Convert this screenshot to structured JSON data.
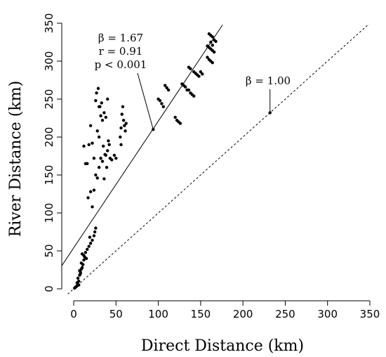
{
  "chart_data": {
    "type": "scatter",
    "xlabel": "Direct Distance (km)",
    "ylabel": "River Distance (km)",
    "xlim": [
      0,
      350
    ],
    "ylim": [
      0,
      350
    ],
    "x_ticks": [
      0,
      50,
      100,
      150,
      200,
      250,
      300,
      350
    ],
    "y_ticks": [
      0,
      50,
      100,
      150,
      200,
      250,
      300,
      350
    ],
    "grid": false,
    "legend": "none",
    "fit_line": {
      "style": "solid",
      "slope": 1.67,
      "intercept": 54,
      "annotation": {
        "beta": "β = 1.67",
        "r": "r = 0.91",
        "p": "p < 0.001",
        "pointer_to": [
          94,
          210
        ]
      }
    },
    "reference_line": {
      "style": "dashed",
      "slope": 1.0,
      "intercept": 0,
      "annotation": {
        "beta": "β = 1.00",
        "pointer_to": [
          232,
          232
        ]
      }
    },
    "points": [
      [
        1,
        1
      ],
      [
        2,
        2
      ],
      [
        3,
        3
      ],
      [
        4,
        4
      ],
      [
        5,
        6
      ],
      [
        6,
        5
      ],
      [
        4,
        8
      ],
      [
        6,
        10
      ],
      [
        5,
        14
      ],
      [
        7,
        18
      ],
      [
        8,
        22
      ],
      [
        9,
        26
      ],
      [
        10,
        28
      ],
      [
        11,
        32
      ],
      [
        12,
        38
      ],
      [
        13,
        42
      ],
      [
        10,
        46
      ],
      [
        14,
        48
      ],
      [
        16,
        52
      ],
      [
        18,
        56
      ],
      [
        20,
        60
      ],
      [
        22,
        64
      ],
      [
        24,
        70
      ],
      [
        19,
        68
      ],
      [
        25,
        75
      ],
      [
        26,
        80
      ],
      [
        8,
        20
      ],
      [
        7,
        24
      ],
      [
        9,
        34
      ],
      [
        12,
        44
      ],
      [
        15,
        40
      ],
      [
        17,
        120
      ],
      [
        20,
        128
      ],
      [
        22,
        108
      ],
      [
        24,
        130
      ],
      [
        26,
        150
      ],
      [
        28,
        146
      ],
      [
        30,
        160
      ],
      [
        32,
        172
      ],
      [
        34,
        168
      ],
      [
        36,
        145
      ],
      [
        38,
        176
      ],
      [
        40,
        182
      ],
      [
        42,
        190
      ],
      [
        12,
        188
      ],
      [
        14,
        165
      ],
      [
        16,
        165
      ],
      [
        18,
        190
      ],
      [
        20,
        215
      ],
      [
        22,
        192
      ],
      [
        24,
        172
      ],
      [
        26,
        248
      ],
      [
        28,
        208
      ],
      [
        30,
        200
      ],
      [
        31,
        240
      ],
      [
        32,
        228
      ],
      [
        34,
        222
      ],
      [
        36,
        232
      ],
      [
        38,
        226
      ],
      [
        40,
        250
      ],
      [
        41,
        195
      ],
      [
        27,
        258
      ],
      [
        29,
        264
      ],
      [
        30,
        240
      ],
      [
        33,
        245
      ],
      [
        35,
        188
      ],
      [
        37,
        177
      ],
      [
        39,
        160
      ],
      [
        43,
        172
      ],
      [
        45,
        170
      ],
      [
        48,
        176
      ],
      [
        50,
        172
      ],
      [
        55,
        200
      ],
      [
        56,
        212
      ],
      [
        57,
        230
      ],
      [
        58,
        240
      ],
      [
        59,
        222
      ],
      [
        60,
        215
      ],
      [
        61,
        208
      ],
      [
        62,
        218
      ],
      [
        56,
        190
      ],
      [
        100,
        250
      ],
      [
        102,
        248
      ],
      [
        104,
        244
      ],
      [
        106,
        240
      ],
      [
        108,
        268
      ],
      [
        110,
        265
      ],
      [
        112,
        262
      ],
      [
        120,
        226
      ],
      [
        122,
        222
      ],
      [
        124,
        220
      ],
      [
        126,
        218
      ],
      [
        128,
        270
      ],
      [
        130,
        268
      ],
      [
        132,
        266
      ],
      [
        134,
        262
      ],
      [
        136,
        262
      ],
      [
        138,
        258
      ],
      [
        140,
        256
      ],
      [
        142,
        254
      ],
      [
        136,
        292
      ],
      [
        138,
        290
      ],
      [
        142,
        286
      ],
      [
        144,
        284
      ],
      [
        146,
        282
      ],
      [
        148,
        280
      ],
      [
        150,
        286
      ],
      [
        152,
        283
      ],
      [
        158,
        305
      ],
      [
        160,
        302
      ],
      [
        162,
        300
      ],
      [
        164,
        298
      ],
      [
        158,
        320
      ],
      [
        160,
        318
      ],
      [
        162,
        316
      ],
      [
        164,
        314
      ],
      [
        166,
        312
      ],
      [
        160,
        336
      ],
      [
        162,
        334
      ],
      [
        164,
        332
      ],
      [
        166,
        328
      ],
      [
        168,
        326
      ],
      [
        162,
        325
      ],
      [
        164,
        321
      ],
      [
        94,
        210
      ],
      [
        232,
        232
      ]
    ]
  }
}
